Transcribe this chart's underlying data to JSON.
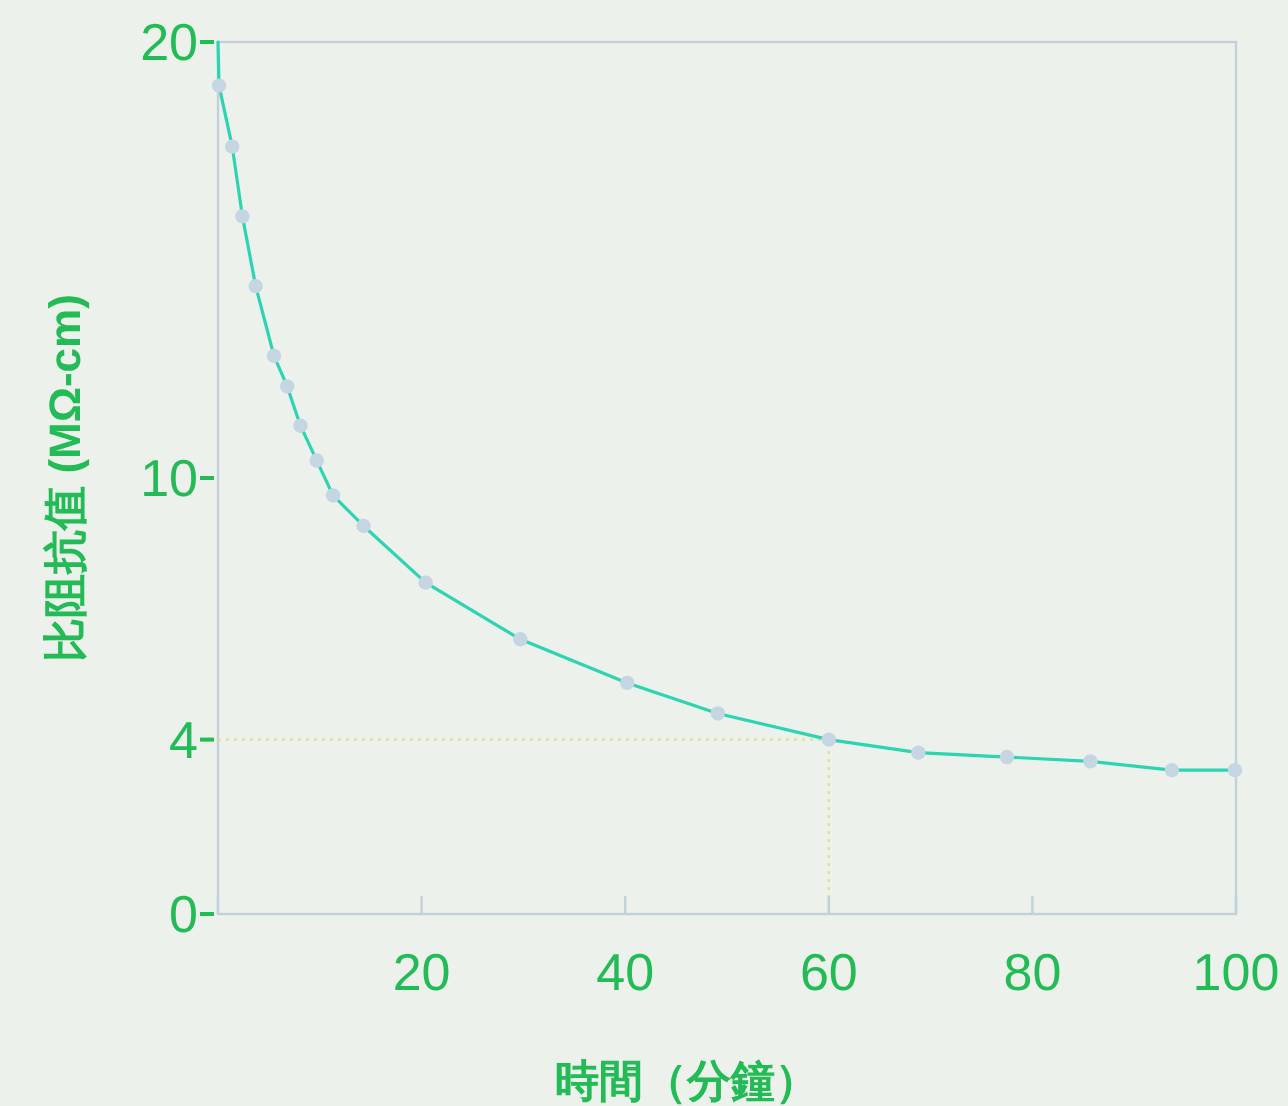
{
  "chart_data": {
    "type": "line",
    "xlabel": "時間（分鐘）",
    "ylabel": "比阻抗值 (MΩ-cm)",
    "xlim": [
      0,
      100
    ],
    "xticks": [
      {
        "value": 0,
        "label": null
      },
      20,
      40,
      60,
      80,
      100
    ],
    "ylim": [
      0,
      20
    ],
    "yticks": [
      0,
      4,
      10,
      20
    ],
    "grid": false,
    "series": [
      {
        "type": "line",
        "color": "#2dd4b2",
        "marker": "none",
        "x": [
          0,
          0.1,
          1.4,
          2.4,
          3.7,
          5.5,
          6.8,
          8.1,
          9.7,
          11.3,
          14.3,
          20.4,
          29.7,
          40.2,
          49.1,
          60,
          68.8,
          77.5,
          85.7,
          93.7,
          99.9
        ],
        "values": [
          20,
          19.0,
          17.6,
          16.0,
          14.4,
          12.8,
          12.1,
          11.2,
          10.4,
          9.6,
          8.9,
          7.6,
          6.3,
          5.3,
          4.6,
          4,
          3.7,
          3.6,
          3.5,
          3.3,
          3.3
        ]
      },
      {
        "type": "scatter",
        "color": "#c5d6e2",
        "marker": "circle",
        "x": [
          0.1,
          1.4,
          2.4,
          3.7,
          5.5,
          6.8,
          8.1,
          9.7,
          11.3,
          14.3,
          20.4,
          29.7,
          40.2,
          49.1,
          60,
          68.8,
          77.5,
          85.7,
          93.7,
          99.9
        ],
        "values": [
          19.0,
          17.6,
          16.0,
          14.4,
          12.8,
          12.1,
          11.2,
          10.4,
          9.6,
          8.9,
          7.6,
          6.3,
          5.3,
          4.6,
          4,
          3.7,
          3.6,
          3.5,
          3.3,
          3.3
        ]
      }
    ],
    "ref_lines": [
      {
        "axis": "y",
        "value": 4,
        "color": "#e3e08a",
        "line_style": "dotted"
      },
      {
        "axis": "x",
        "value": 60,
        "color": "#e3e08a",
        "line_style": "dotted"
      }
    ]
  }
}
